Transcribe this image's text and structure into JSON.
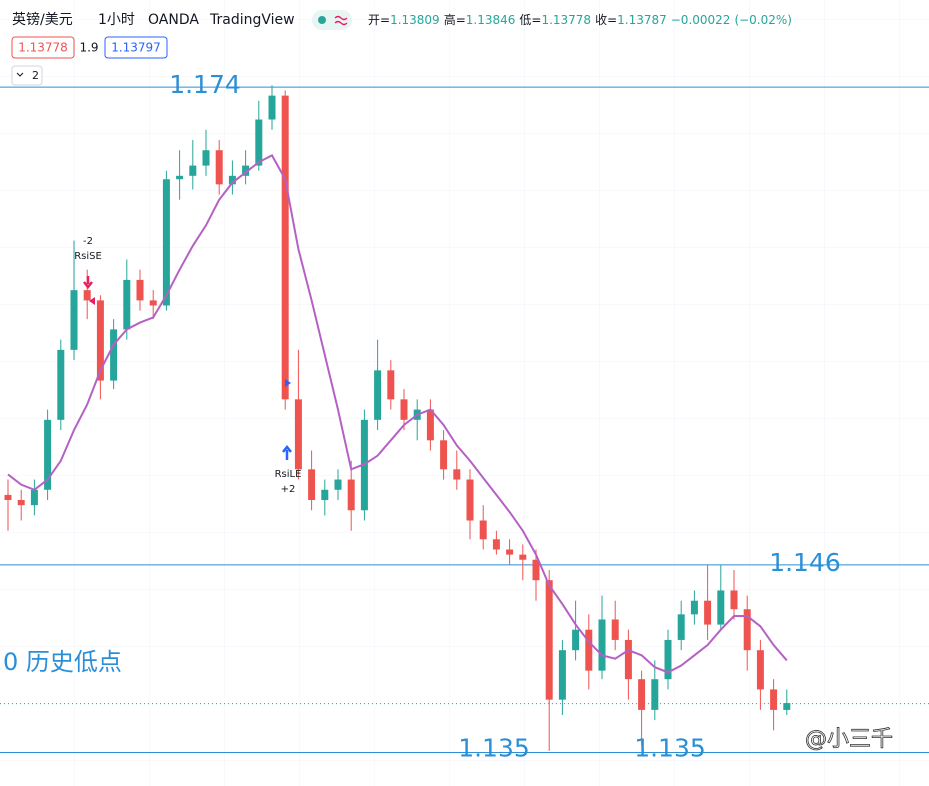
{
  "chart_data": {
    "type": "candlestick",
    "header": {
      "symbol": "英镑/美元",
      "interval": "1小时",
      "source": "OANDA",
      "platform": "TradingView"
    },
    "ohlc": [
      {
        "label": "开=",
        "value": 1.13809
      },
      {
        "label": "高=",
        "value": 1.13846
      },
      {
        "label": "低=",
        "value": 1.13778
      },
      {
        "label": "收=",
        "value": 1.13787
      }
    ],
    "change": {
      "value": -0.00022,
      "label": "−0.00022"
    },
    "change_pct": {
      "value": -0.02,
      "label": "(−0.02%)"
    },
    "bid": 1.13778,
    "spread": 1.9,
    "ask": 1.13797,
    "indicator_count": 2,
    "categories": [
      null,
      null,
      null,
      null,
      null,
      null,
      null,
      null,
      null,
      null,
      null,
      null,
      null,
      null,
      null,
      null,
      null,
      null,
      null,
      null,
      null,
      null,
      null,
      null,
      null,
      null,
      null,
      null,
      null,
      null,
      null,
      null,
      null,
      null,
      null,
      null,
      null,
      null,
      null,
      null,
      null,
      null,
      null,
      null,
      null,
      null,
      null,
      null,
      null,
      null,
      null,
      null,
      null,
      null,
      null,
      null,
      null,
      null,
      null,
      null
    ],
    "candles": {
      "up_color": "#26a69a",
      "down_color": "#ef5350",
      "open": [
        1.1501,
        1.1498,
        1.1495,
        1.1504,
        1.1545,
        1.1586,
        1.1621,
        1.1615,
        1.1568,
        1.1598,
        1.1627,
        1.1615,
        1.1612,
        1.1686,
        1.1688,
        1.1694,
        1.1703,
        1.1683,
        1.1688,
        1.1694,
        1.1721,
        1.1735,
        1.1557,
        1.1516,
        1.1498,
        1.1504,
        1.151,
        1.1492,
        1.1545,
        1.1574,
        1.1557,
        1.1545,
        1.1551,
        1.1533,
        1.1516,
        1.151,
        1.1486,
        1.1475,
        1.1469,
        1.1466,
        1.1463,
        1.1451,
        1.1381,
        1.141,
        1.1422,
        1.1398,
        1.1428,
        1.1416,
        1.1393,
        1.1375,
        1.1393,
        1.1416,
        1.1431,
        1.1439,
        1.1425,
        1.1445,
        1.1434,
        1.141,
        1.1387,
        1.1375
      ],
      "high": [
        1.151,
        1.1504,
        1.151,
        1.1551,
        1.1592,
        1.165,
        1.1633,
        1.1618,
        1.1604,
        1.1639,
        1.1633,
        1.1621,
        1.1691,
        1.1703,
        1.1709,
        1.1715,
        1.1709,
        1.1697,
        1.1703,
        1.1732,
        1.1741,
        1.1738,
        1.1586,
        1.1527,
        1.151,
        1.1516,
        1.1521,
        1.1551,
        1.1592,
        1.158,
        1.1563,
        1.1557,
        1.1557,
        1.1539,
        1.1527,
        1.1516,
        1.1495,
        1.148,
        1.1475,
        1.1472,
        1.1469,
        1.1457,
        1.1416,
        1.1439,
        1.1431,
        1.1442,
        1.1439,
        1.1422,
        1.1398,
        1.1404,
        1.1422,
        1.1439,
        1.1445,
        1.146,
        1.146,
        1.1457,
        1.1442,
        1.1416,
        1.1393,
        1.1387
      ],
      "low": [
        1.148,
        1.1486,
        1.1489,
        1.1498,
        1.1539,
        1.158,
        1.1604,
        1.1557,
        1.1563,
        1.1592,
        1.1609,
        1.1604,
        1.1609,
        1.1674,
        1.168,
        1.1688,
        1.1677,
        1.1677,
        1.1683,
        1.1691,
        1.1715,
        1.1551,
        1.151,
        1.1492,
        1.1489,
        1.1498,
        1.148,
        1.1486,
        1.1539,
        1.1551,
        1.1539,
        1.1533,
        1.1527,
        1.151,
        1.1504,
        1.1475,
        1.1469,
        1.1466,
        1.146,
        1.1451,
        1.1439,
        1.1351,
        1.1372,
        1.1404,
        1.1387,
        1.1393,
        1.141,
        1.1381,
        1.1354,
        1.1369,
        1.1387,
        1.141,
        1.1425,
        1.1416,
        1.1422,
        1.1428,
        1.1398,
        1.1375,
        1.1363,
        1.1372
      ],
      "close": [
        1.1498,
        1.1495,
        1.1504,
        1.1545,
        1.1586,
        1.1621,
        1.1615,
        1.1568,
        1.1598,
        1.1627,
        1.1615,
        1.1612,
        1.1686,
        1.1688,
        1.1694,
        1.1703,
        1.1683,
        1.1688,
        1.1694,
        1.1721,
        1.1735,
        1.1557,
        1.1516,
        1.1498,
        1.1504,
        1.151,
        1.1492,
        1.1545,
        1.1574,
        1.1557,
        1.1545,
        1.1551,
        1.1533,
        1.1516,
        1.151,
        1.1486,
        1.1475,
        1.1469,
        1.1466,
        1.1463,
        1.1451,
        1.1381,
        1.141,
        1.1422,
        1.1398,
        1.1428,
        1.1416,
        1.1393,
        1.1375,
        1.1393,
        1.1416,
        1.1431,
        1.1439,
        1.1425,
        1.1445,
        1.1434,
        1.141,
        1.1387,
        1.1375,
        1.1379
      ]
    },
    "ma": {
      "color": "#b561c4",
      "values": [
        1.1513,
        1.1507,
        1.1504,
        1.151,
        1.1521,
        1.1539,
        1.1554,
        1.1574,
        1.1589,
        1.1598,
        1.1602,
        1.1605,
        1.1618,
        1.1633,
        1.1647,
        1.1659,
        1.1674,
        1.1684,
        1.169,
        1.1696,
        1.17,
        1.1686,
        1.1645,
        1.1615,
        1.1583,
        1.1551,
        1.1516,
        1.1519,
        1.1524,
        1.1533,
        1.1542,
        1.1548,
        1.1551,
        1.1542,
        1.153,
        1.1521,
        1.1511,
        1.1501,
        1.1491,
        1.148,
        1.1466,
        1.1448,
        1.1437,
        1.1425,
        1.1415,
        1.1407,
        1.1405,
        1.141,
        1.1407,
        1.14,
        1.1397,
        1.1401,
        1.1407,
        1.1413,
        1.1422,
        1.143,
        1.143,
        1.1424,
        1.1413,
        1.1404
      ]
    },
    "levels": [
      {
        "value": 1.174,
        "label": "1.174"
      },
      {
        "value": 1.146,
        "label": "1.146"
      },
      {
        "value": 1.135,
        "label": "1.135"
      }
    ],
    "level_color": "#2a8fd6",
    "signals": [
      {
        "name": "RsiSE",
        "qty": "-2"
      },
      {
        "name": "RsiLE",
        "qty": "+2"
      }
    ],
    "annotation": "0 历史低点",
    "watermark": "@小三千",
    "ylim": [
      1.13304,
      1.17676
    ]
  }
}
